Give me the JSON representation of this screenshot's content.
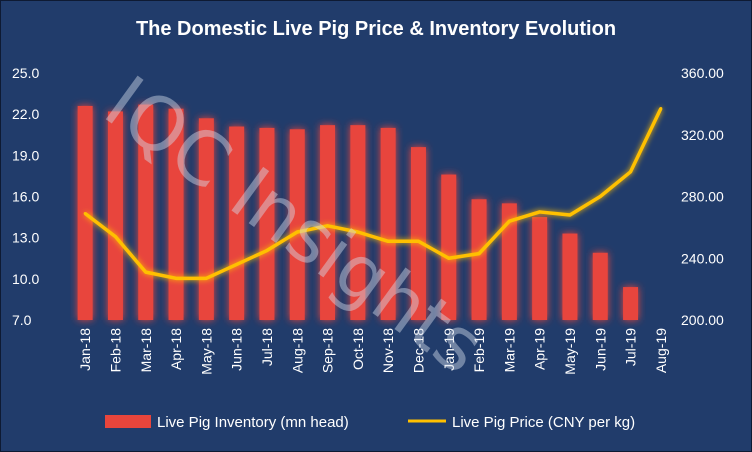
{
  "chart_data": {
    "type": "bar",
    "title": "The Domestic Live Pig Price & Inventory Evolution",
    "categories": [
      "Jan-18",
      "Feb-18",
      "Mar-18",
      "Apr-18",
      "May-18",
      "Jun-18",
      "Jul-18",
      "Aug-18",
      "Sep-18",
      "Oct-18",
      "Nov-18",
      "Dec-18",
      "Jan-19",
      "Feb-19",
      "Mar-19",
      "Apr-19",
      "May-19",
      "Jun-19",
      "Jul-19",
      "Aug-19"
    ],
    "series": [
      {
        "name": "Live Pig Inventory (mn head)",
        "type": "bar",
        "axis": "left",
        "color": "#e8453c",
        "values": [
          22.6,
          22.2,
          22.7,
          22.4,
          21.7,
          21.1,
          21.0,
          20.9,
          21.2,
          21.2,
          21.0,
          19.6,
          17.6,
          15.8,
          15.5,
          14.5,
          13.3,
          11.9,
          9.4,
          null
        ]
      },
      {
        "name": "Live Pig Price (CNY per kg)",
        "type": "line",
        "axis": "right",
        "color": "#ffc000",
        "values": [
          269,
          254,
          231,
          227,
          227,
          236,
          245,
          257,
          261,
          257,
          251,
          251,
          240,
          243,
          264,
          270,
          268,
          280,
          296,
          337
        ]
      }
    ],
    "y_left": {
      "ylim": [
        7,
        25
      ],
      "ticks": [
        "7.0",
        "10.0",
        "13.0",
        "16.0",
        "19.0",
        "22.0",
        "25.0"
      ]
    },
    "y_right": {
      "ylim": [
        200,
        360
      ],
      "ticks": [
        "200.00",
        "240.00",
        "280.00",
        "320.00",
        "360.00"
      ]
    },
    "grid": false,
    "legend": "bottom"
  },
  "watermark": "IQC Insights",
  "colors": {
    "background": "#213c6b",
    "bar": "#e8453c",
    "line": "#ffc000",
    "text": "#ffffff"
  }
}
